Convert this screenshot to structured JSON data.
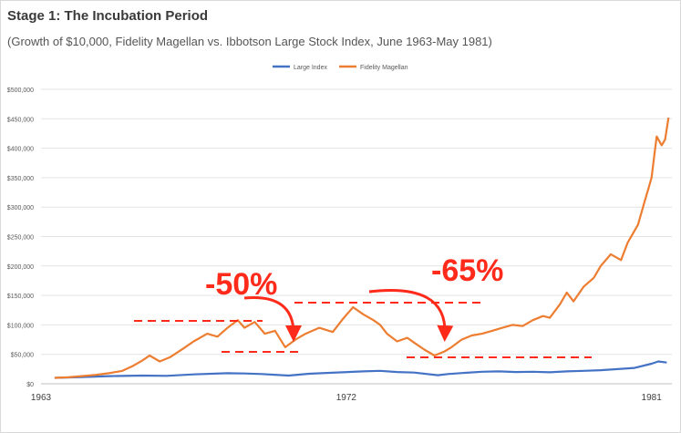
{
  "title": "Stage 1: The Incubation Period",
  "subtitle": "(Growth of $10,000, Fidelity Magellan vs. Ibbotson Large Stock Index, June 1963-May 1981)",
  "chart_data": {
    "type": "line",
    "title": "Stage 1: The Incubation Period",
    "subtitle": "(Growth of $10,000, Fidelity Magellan vs. Ibbotson Large Stock Index, June 1963-May 1981)",
    "xlabel": "",
    "ylabel": "",
    "xlim": [
      1963.0,
      1981.6
    ],
    "ylim": [
      0,
      500000
    ],
    "grid": "horizontal",
    "legend_position": "top-center",
    "x_ticks": [
      1963,
      1972,
      1981
    ],
    "x_tick_labels": [
      "1963",
      "1972",
      "1981"
    ],
    "y_ticks": [
      0,
      50000,
      100000,
      150000,
      200000,
      250000,
      300000,
      350000,
      400000,
      450000,
      500000
    ],
    "y_tick_labels": [
      "$0",
      "$50,000",
      "$100,000",
      "$150,000",
      "$200,000",
      "$250,000",
      "$300,000",
      "$350,000",
      "$400,000",
      "$450,000",
      "$500,000"
    ],
    "series": [
      {
        "name": "Large Index",
        "color": "#4472c4",
        "x": [
          1963.4,
          1964.0,
          1965.0,
          1966.0,
          1966.7,
          1967.5,
          1968.5,
          1969.0,
          1969.5,
          1970.3,
          1970.9,
          1971.5,
          1972.5,
          1973.0,
          1973.5,
          1974.0,
          1974.7,
          1975.0,
          1975.5,
          1976.0,
          1976.5,
          1977.0,
          1977.5,
          1978.0,
          1978.5,
          1979.0,
          1979.5,
          1980.0,
          1980.5,
          1981.0,
          1981.2,
          1981.45
        ],
        "y": [
          10000,
          11000,
          13000,
          14000,
          13500,
          16000,
          18000,
          17500,
          16500,
          14000,
          17000,
          18500,
          21000,
          22000,
          20000,
          19000,
          14500,
          16500,
          18500,
          20500,
          21000,
          20000,
          20500,
          19500,
          21000,
          22000,
          23000,
          25000,
          27000,
          34000,
          38000,
          36000
        ]
      },
      {
        "name": "Fidelity Magellan",
        "color": "#ed7d31",
        "x": [
          1963.4,
          1963.8,
          1964.2,
          1964.6,
          1965.0,
          1965.4,
          1965.7,
          1966.0,
          1966.2,
          1966.5,
          1966.8,
          1967.2,
          1967.5,
          1967.9,
          1968.2,
          1968.5,
          1968.8,
          1969.0,
          1969.3,
          1969.6,
          1969.9,
          1970.2,
          1970.5,
          1970.8,
          1971.2,
          1971.6,
          1971.9,
          1972.2,
          1972.5,
          1972.8,
          1973.0,
          1973.2,
          1973.5,
          1973.8,
          1974.0,
          1974.3,
          1974.6,
          1974.9,
          1975.1,
          1975.4,
          1975.7,
          1976.0,
          1976.3,
          1976.6,
          1976.9,
          1977.2,
          1977.5,
          1977.8,
          1978.0,
          1978.3,
          1978.5,
          1978.7,
          1979.0,
          1979.3,
          1979.5,
          1979.8,
          1980.1,
          1980.3,
          1980.6,
          1980.8,
          1980.9,
          1981.0,
          1981.15,
          1981.3,
          1981.4,
          1981.5
        ],
        "y": [
          10000,
          11000,
          13000,
          15000,
          18000,
          22000,
          30000,
          40000,
          48000,
          38000,
          45000,
          60000,
          72000,
          85000,
          80000,
          95000,
          108000,
          95000,
          105000,
          85000,
          90000,
          62000,
          75000,
          85000,
          95000,
          88000,
          110000,
          130000,
          118000,
          108000,
          100000,
          85000,
          72000,
          78000,
          70000,
          58000,
          48000,
          55000,
          62000,
          75000,
          82000,
          85000,
          90000,
          95000,
          100000,
          98000,
          108000,
          115000,
          112000,
          135000,
          155000,
          140000,
          165000,
          180000,
          200000,
          220000,
          210000,
          240000,
          270000,
          310000,
          330000,
          350000,
          420000,
          405000,
          415000,
          452000
        ]
      }
    ],
    "annotations": [
      {
        "text": "-50%",
        "color": "#ff2a1a"
      },
      {
        "text": "-65%",
        "color": "#ff2a1a"
      }
    ]
  }
}
